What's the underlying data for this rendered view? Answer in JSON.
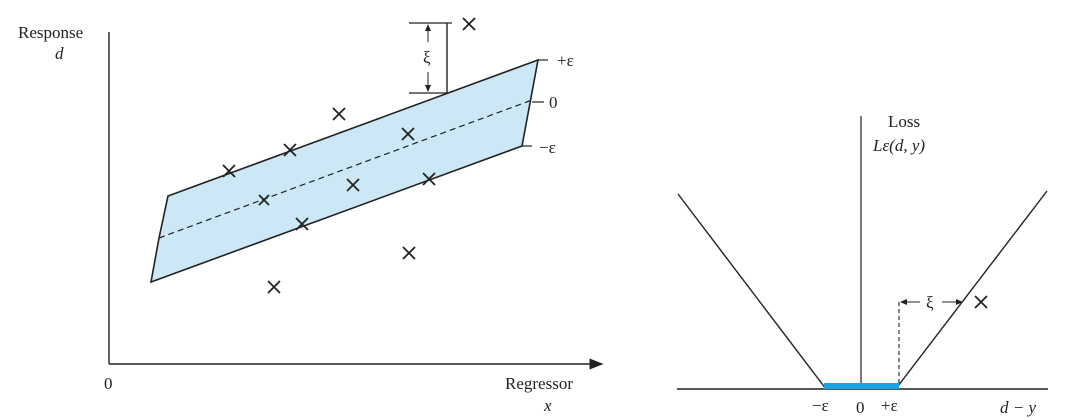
{
  "left_plot": {
    "y_label_line1": "Response",
    "y_label_line2": "d",
    "x_label_line1": "Regressor",
    "x_label_line2": "x",
    "origin_label": "0",
    "band_upper_label": "+ε",
    "band_center_label": "0",
    "band_lower_label": "−ε",
    "slack_label": "ξ",
    "colors": {
      "band_fill": "#cce7f5",
      "outline": "#222222"
    }
  },
  "right_plot": {
    "title_line1": "Loss",
    "title_line2": "Lε(d, y)",
    "x_label": "d − y",
    "tick_neg_eps": "−ε",
    "tick_zero": "0",
    "tick_pos_eps": "+ε",
    "slack_label": "ξ",
    "colors": {
      "dead_zone": "#1aa3e0",
      "outline": "#222222"
    }
  }
}
